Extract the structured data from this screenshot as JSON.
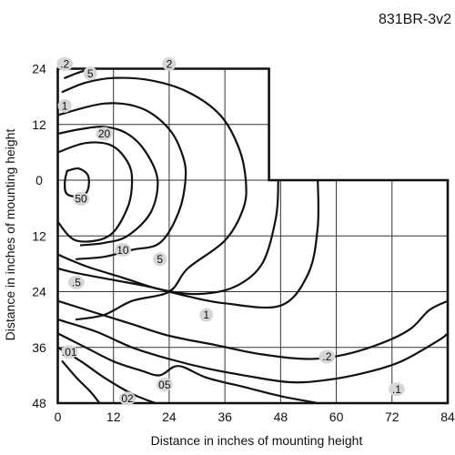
{
  "chart_data": {
    "type": "contour",
    "title": "831BR-3v2",
    "xlabel": "Distance in inches of mounting height",
    "ylabel": "Distance in inches of mounting height",
    "xlim": [
      0,
      84
    ],
    "ylim": [
      -24,
      48
    ],
    "x_ticks": [
      "0",
      "12",
      "24",
      "36",
      "48",
      "60",
      "72",
      "84"
    ],
    "y_ticks": [
      {
        "label": "24",
        "value": -24
      },
      {
        "label": "12",
        "value": -12
      },
      {
        "label": "0",
        "value": 0
      },
      {
        "label": "12",
        "value": 12
      },
      {
        "label": "24",
        "value": 24
      },
      {
        "label": "36",
        "value": 36
      },
      {
        "label": "48",
        "value": 48
      }
    ],
    "grid": true,
    "outline": [
      [
        0,
        -24
      ],
      [
        45.5,
        -24
      ],
      [
        45.5,
        0
      ],
      [
        84,
        0
      ],
      [
        84,
        48
      ],
      [
        0,
        48
      ]
    ],
    "contours": [
      {
        "level": "50",
        "points": [
          [
            2,
            -2
          ],
          [
            4.5,
            -2.5
          ],
          [
            6.5,
            -1
          ],
          [
            6.5,
            2
          ],
          [
            5,
            3.5
          ],
          [
            2,
            3
          ],
          [
            1.5,
            0.5
          ],
          [
            2,
            -2
          ]
        ]
      },
      {
        "level": "20",
        "points": [
          [
            0,
            -6
          ],
          [
            6,
            -8
          ],
          [
            11.5,
            -7.5
          ],
          [
            15,
            -4
          ],
          [
            16,
            0
          ],
          [
            15,
            6
          ],
          [
            11,
            12
          ],
          [
            4,
            13
          ],
          [
            0,
            9
          ]
        ]
      },
      {
        "level": "10",
        "points": [
          [
            0,
            -10
          ],
          [
            5,
            -11
          ],
          [
            10,
            -11.5
          ],
          [
            15,
            -10
          ],
          [
            19,
            -6
          ],
          [
            21.5,
            0
          ],
          [
            20,
            7
          ],
          [
            15,
            12
          ],
          [
            10,
            13.5
          ],
          [
            5,
            14
          ]
        ]
      },
      {
        "level": "5",
        "points": [
          [
            0,
            -14
          ],
          [
            10,
            -16.5
          ],
          [
            18,
            -15.5
          ],
          [
            24,
            -11
          ],
          [
            27,
            -5
          ],
          [
            27.5,
            0
          ],
          [
            26,
            7
          ],
          [
            22,
            13.5
          ],
          [
            16,
            15
          ],
          [
            10,
            16.5
          ],
          [
            4,
            17
          ]
        ]
      },
      {
        "level": "2",
        "points": [
          [
            1,
            -19
          ],
          [
            6,
            -21
          ],
          [
            12,
            -22
          ],
          [
            20,
            -21.5
          ],
          [
            28,
            -19
          ],
          [
            35,
            -14
          ],
          [
            39,
            -7
          ],
          [
            40.5,
            0
          ],
          [
            40,
            6
          ],
          [
            36,
            13
          ],
          [
            28,
            19
          ],
          [
            24,
            24
          ],
          [
            16,
            26
          ],
          [
            10,
            29
          ],
          [
            4,
            30
          ]
        ]
      },
      {
        "level": "1",
        "points": [
          [
            1.5,
            -22
          ],
          [
            4,
            -23
          ],
          [
            7,
            -24
          ]
        ]
      },
      {
        "level": "1",
        "points": [
          [
            0,
            16
          ],
          [
            6,
            18.5
          ],
          [
            14,
            21
          ],
          [
            22,
            23.5
          ],
          [
            30,
            24.5
          ],
          [
            38,
            23
          ],
          [
            44,
            18
          ],
          [
            47,
            8
          ],
          [
            47.5,
            0
          ]
        ]
      },
      {
        "level": ".5",
        "points": [
          [
            0,
            19
          ],
          [
            4,
            20
          ],
          [
            12,
            21.5
          ],
          [
            20,
            23
          ],
          [
            28,
            25
          ],
          [
            36,
            26.5
          ],
          [
            48,
            27
          ],
          [
            54,
            20
          ],
          [
            56,
            10
          ],
          [
            56,
            0
          ]
        ]
      },
      {
        "level": ".2",
        "points": [
          [
            0,
            26
          ],
          [
            8,
            28.5
          ],
          [
            16,
            31
          ],
          [
            24,
            33.5
          ],
          [
            34,
            35.5
          ],
          [
            44,
            37.5
          ],
          [
            54,
            38.5
          ],
          [
            62,
            37.5
          ],
          [
            70,
            35
          ],
          [
            76,
            32
          ],
          [
            80,
            28
          ],
          [
            84,
            26
          ]
        ]
      },
      {
        "level": ".1",
        "points": [
          [
            0,
            30
          ],
          [
            8,
            32.5
          ],
          [
            16,
            36
          ],
          [
            24,
            38.5
          ],
          [
            32,
            40.5
          ],
          [
            40,
            42
          ],
          [
            50,
            43.5
          ],
          [
            58,
            43
          ],
          [
            66,
            41.5
          ],
          [
            74,
            39
          ],
          [
            82,
            34.5
          ],
          [
            84,
            33
          ]
        ]
      },
      {
        "level": ".05",
        "points": [
          [
            0,
            33
          ],
          [
            6,
            36
          ],
          [
            12,
            39
          ],
          [
            18,
            41
          ],
          [
            22,
            42
          ],
          [
            26,
            40
          ],
          [
            32,
            42.5
          ],
          [
            40,
            44.5
          ],
          [
            48,
            46.5
          ],
          [
            56,
            48
          ]
        ]
      },
      {
        "level": ".02",
        "points": [
          [
            0,
            36
          ],
          [
            5,
            39
          ],
          [
            10,
            42.5
          ],
          [
            16,
            46
          ],
          [
            21,
            48
          ]
        ]
      },
      {
        "level": ".01",
        "points": [
          [
            1,
            39
          ],
          [
            4,
            42.5
          ],
          [
            7,
            45.5
          ],
          [
            9,
            48
          ]
        ]
      }
    ],
    "labels": [
      {
        "text": ".2",
        "x": 1.5,
        "y": -25
      },
      {
        "text": "5",
        "x": 7,
        "y": -23
      },
      {
        "text": "2",
        "x": 24,
        "y": -25
      },
      {
        "text": "1",
        "x": 1.5,
        "y": -16
      },
      {
        "text": "20",
        "x": 10,
        "y": -10
      },
      {
        "text": "50",
        "x": 5,
        "y": 4
      },
      {
        "text": "10",
        "x": 14,
        "y": 15
      },
      {
        "text": "5",
        "x": 22,
        "y": 17
      },
      {
        "text": ".5",
        "x": 4,
        "y": 22
      },
      {
        "text": "1",
        "x": 32,
        "y": 29
      },
      {
        "text": ".01",
        "x": 2.5,
        "y": 37
      },
      {
        "text": ".2",
        "x": 58,
        "y": 38
      },
      {
        "text": "05",
        "x": 23,
        "y": 44
      },
      {
        "text": ".1",
        "x": 73,
        "y": 45
      },
      {
        "text": "02",
        "x": 15,
        "y": 47
      }
    ]
  }
}
